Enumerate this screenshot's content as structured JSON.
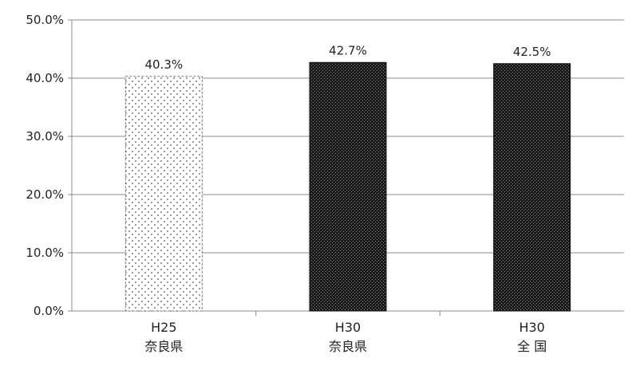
{
  "chart_data": {
    "type": "bar",
    "categories": [
      [
        "H25",
        "奈良県"
      ],
      [
        "H30",
        "奈良県"
      ],
      [
        "H30",
        "全 国"
      ]
    ],
    "values": [
      40.3,
      42.7,
      42.5
    ],
    "data_labels": [
      "40.3%",
      "42.7%",
      "42.5%"
    ],
    "bar_fills": [
      "dots",
      "dense-dark",
      "dense-dark"
    ],
    "title": "",
    "xlabel": "",
    "ylabel": "",
    "ylim": [
      0,
      50
    ],
    "yticks": [
      0,
      10,
      20,
      30,
      40,
      50
    ],
    "ytick_labels": [
      "0.0%",
      "10.0%",
      "20.0%",
      "30.0%",
      "40.0%",
      "50.0%"
    ],
    "grid": true,
    "legend": "none"
  }
}
